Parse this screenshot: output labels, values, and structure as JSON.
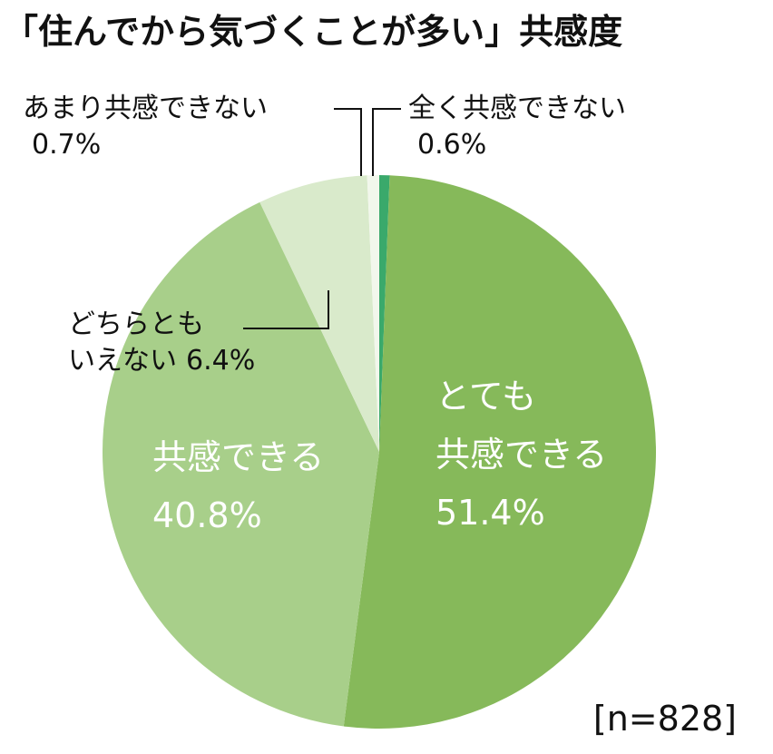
{
  "chart_data": {
    "type": "pie",
    "title": "「住んでから気づくことが多い」共感度",
    "categories": [
      "全く共感できない",
      "とても\n共感できる",
      "共感できる",
      "どちらとも\nいえない",
      "あまり共感できない"
    ],
    "values": [
      0.6,
      51.4,
      40.8,
      6.4,
      0.7
    ],
    "value_labels": [
      "0.6%",
      "51.4%",
      "40.8%",
      "6.4%",
      "0.7%"
    ],
    "colors": [
      "#3aa96b",
      "#86b95a",
      "#a8cf8a",
      "#d9eacb",
      "#f2f7ec"
    ],
    "note": "[n=828]"
  }
}
